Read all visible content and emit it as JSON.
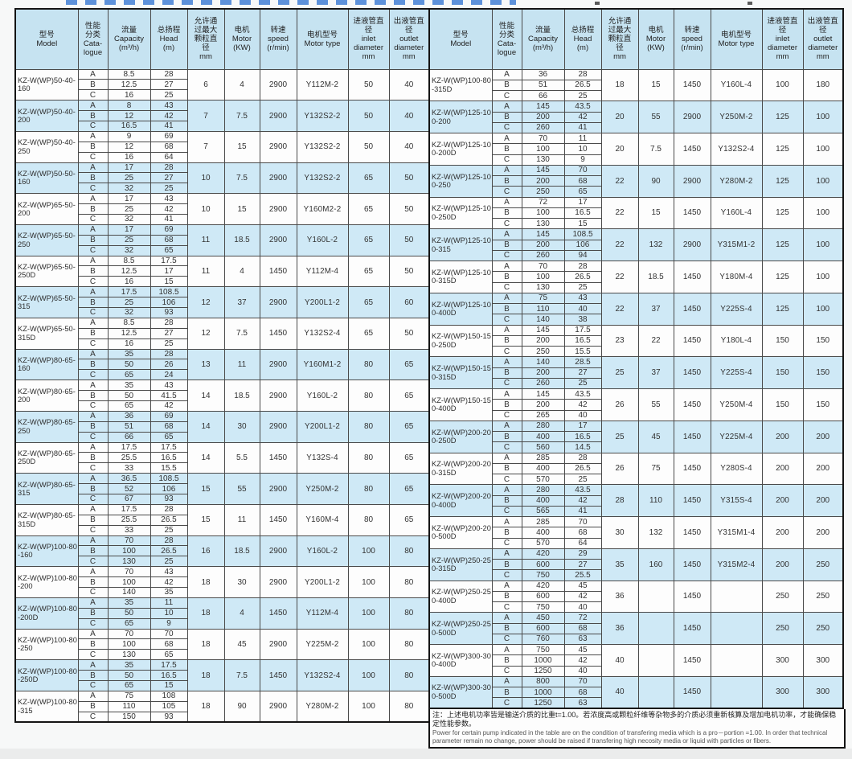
{
  "colors": {
    "header_bg": "#c6e3f1",
    "row_alt_bg": "#cfe9f6",
    "row_bg": "#fdfdfd",
    "border": "#141414",
    "accent_strip": "#2a6fd0"
  },
  "table_headers": [
    {
      "key": "model",
      "lines": [
        "型号",
        "Model"
      ]
    },
    {
      "key": "catalogue",
      "lines": [
        "性能",
        "分类",
        "Cata-",
        "logue"
      ]
    },
    {
      "key": "capacity",
      "lines": [
        "流量",
        "Capacity",
        "(m³/h)"
      ]
    },
    {
      "key": "head",
      "lines": [
        "总扬程",
        "Head",
        "(m)"
      ]
    },
    {
      "key": "particle",
      "lines": [
        "允许通",
        "过最大",
        "颗粒直",
        "径",
        "mm"
      ]
    },
    {
      "key": "motor",
      "lines": [
        "电机",
        "Motor",
        "(KW)"
      ]
    },
    {
      "key": "speed",
      "lines": [
        "转速",
        "speed",
        "(r/min)"
      ]
    },
    {
      "key": "motor_type",
      "lines": [
        "电机型号",
        "Motor type"
      ]
    },
    {
      "key": "inlet",
      "lines": [
        "进液管直",
        "径",
        "inlet",
        "diameter",
        "mm"
      ]
    },
    {
      "key": "outlet",
      "lines": [
        "出液管直",
        "径",
        "outlet",
        "diameter",
        "mm"
      ]
    }
  ],
  "left_groups": [
    {
      "model": "KZ-W(WP)50-40-160",
      "rows": [
        [
          "A",
          "8.5",
          "28"
        ],
        [
          "B",
          "12.5",
          "27"
        ],
        [
          "C",
          "16",
          "25"
        ]
      ],
      "particle": "6",
      "motor": "4",
      "speed": "2900",
      "motor_type": "Y112M-2",
      "inlet": "50",
      "outlet": "40"
    },
    {
      "model": "KZ-W(WP)50-40-200",
      "rows": [
        [
          "A",
          "8",
          "43"
        ],
        [
          "B",
          "12",
          "42"
        ],
        [
          "C",
          "16.5",
          "41"
        ]
      ],
      "particle": "7",
      "motor": "7.5",
      "speed": "2900",
      "motor_type": "Y132S2-2",
      "inlet": "50",
      "outlet": "40"
    },
    {
      "model": "KZ-W(WP)50-40-250",
      "rows": [
        [
          "A",
          "9",
          "69"
        ],
        [
          "B",
          "12",
          "68"
        ],
        [
          "C",
          "16",
          "64"
        ]
      ],
      "particle": "7",
      "motor": "15",
      "speed": "2900",
      "motor_type": "Y132S2-2",
      "inlet": "50",
      "outlet": "40"
    },
    {
      "model": "KZ-W(WP)50-50-160",
      "rows": [
        [
          "A",
          "17",
          "28"
        ],
        [
          "B",
          "25",
          "27"
        ],
        [
          "C",
          "32",
          "25"
        ]
      ],
      "particle": "10",
      "motor": "7.5",
      "speed": "2900",
      "motor_type": "Y132S2-2",
      "inlet": "65",
      "outlet": "50"
    },
    {
      "model": "KZ-W(WP)65-50-200",
      "rows": [
        [
          "A",
          "17",
          "43"
        ],
        [
          "B",
          "25",
          "42"
        ],
        [
          "C",
          "32",
          "41"
        ]
      ],
      "particle": "10",
      "motor": "15",
      "speed": "2900",
      "motor_type": "Y160M2-2",
      "inlet": "65",
      "outlet": "50"
    },
    {
      "model": "KZ-W(WP)65-50-250",
      "rows": [
        [
          "A",
          "17",
          "69"
        ],
        [
          "B",
          "25",
          "68"
        ],
        [
          "C",
          "32",
          "65"
        ]
      ],
      "particle": "11",
      "motor": "18.5",
      "speed": "2900",
      "motor_type": "Y160L-2",
      "inlet": "65",
      "outlet": "50"
    },
    {
      "model": "KZ-W(WP)65-50-250D",
      "rows": [
        [
          "A",
          "8.5",
          "17.5"
        ],
        [
          "B",
          "12.5",
          "17"
        ],
        [
          "C",
          "16",
          "15"
        ]
      ],
      "particle": "11",
      "motor": "4",
      "speed": "1450",
      "motor_type": "Y112M-4",
      "inlet": "65",
      "outlet": "50"
    },
    {
      "model": "KZ-W(WP)65-50-315",
      "rows": [
        [
          "A",
          "17.5",
          "108.5"
        ],
        [
          "B",
          "25",
          "106"
        ],
        [
          "C",
          "32",
          "93"
        ]
      ],
      "particle": "12",
      "motor": "37",
      "speed": "2900",
      "motor_type": "Y200L1-2",
      "inlet": "65",
      "outlet": "60"
    },
    {
      "model": "KZ-W(WP)65-50-315D",
      "rows": [
        [
          "A",
          "8.5",
          "28"
        ],
        [
          "B",
          "12.5",
          "27"
        ],
        [
          "C",
          "16",
          "25"
        ]
      ],
      "particle": "12",
      "motor": "7.5",
      "speed": "1450",
      "motor_type": "Y132S2-4",
      "inlet": "65",
      "outlet": "50"
    },
    {
      "model": "KZ-W(WP)80-65-160",
      "rows": [
        [
          "A",
          "35",
          "28"
        ],
        [
          "B",
          "50",
          "26"
        ],
        [
          "C",
          "65",
          "24"
        ]
      ],
      "particle": "13",
      "motor": "11",
      "speed": "2900",
      "motor_type": "Y160M1-2",
      "inlet": "80",
      "outlet": "65"
    },
    {
      "model": "KZ-W(WP)80-65-200",
      "rows": [
        [
          "A",
          "35",
          "43"
        ],
        [
          "B",
          "50",
          "41.5"
        ],
        [
          "C",
          "65",
          "42"
        ]
      ],
      "particle": "14",
      "motor": "18.5",
      "speed": "2900",
      "motor_type": "Y160L-2",
      "inlet": "80",
      "outlet": "65"
    },
    {
      "model": "KZ-W(WP)80-65-250",
      "rows": [
        [
          "A",
          "36",
          "69"
        ],
        [
          "B",
          "51",
          "68"
        ],
        [
          "C",
          "66",
          "65"
        ]
      ],
      "particle": "14",
      "motor": "30",
      "speed": "2900",
      "motor_type": "Y200L1-2",
      "inlet": "80",
      "outlet": "65"
    },
    {
      "model": "KZ-W(WP)80-65-250D",
      "rows": [
        [
          "A",
          "17.5",
          "17.5"
        ],
        [
          "B",
          "25.5",
          "16.5"
        ],
        [
          "C",
          "33",
          "15.5"
        ]
      ],
      "particle": "14",
      "motor": "5.5",
      "speed": "1450",
      "motor_type": "Y132S-4",
      "inlet": "80",
      "outlet": "65"
    },
    {
      "model": "KZ-W(WP)80-65-315",
      "rows": [
        [
          "A",
          "36.5",
          "108.5"
        ],
        [
          "B",
          "52",
          "106"
        ],
        [
          "C",
          "67",
          "93"
        ]
      ],
      "particle": "15",
      "motor": "55",
      "speed": "2900",
      "motor_type": "Y250M-2",
      "inlet": "80",
      "outlet": "65"
    },
    {
      "model": "KZ-W(WP)80-65-315D",
      "rows": [
        [
          "A",
          "17.5",
          "28"
        ],
        [
          "B",
          "25.5",
          "26.5"
        ],
        [
          "C",
          "33",
          "25"
        ]
      ],
      "particle": "15",
      "motor": "11",
      "speed": "1450",
      "motor_type": "Y160M-4",
      "inlet": "80",
      "outlet": "65"
    },
    {
      "model": "KZ-W(WP)100-80-160",
      "rows": [
        [
          "A",
          "70",
          "28"
        ],
        [
          "B",
          "100",
          "26.5"
        ],
        [
          "C",
          "130",
          "25"
        ]
      ],
      "particle": "16",
      "motor": "18.5",
      "speed": "2900",
      "motor_type": "Y160L-2",
      "inlet": "100",
      "outlet": "80"
    },
    {
      "model": "KZ-W(WP)100-80-200",
      "rows": [
        [
          "A",
          "70",
          "43"
        ],
        [
          "B",
          "100",
          "42"
        ],
        [
          "C",
          "140",
          "35"
        ]
      ],
      "particle": "18",
      "motor": "30",
      "speed": "2900",
      "motor_type": "Y200L1-2",
      "inlet": "100",
      "outlet": "80"
    },
    {
      "model": "KZ-W(WP)100-80-200D",
      "rows": [
        [
          "A",
          "35",
          "11"
        ],
        [
          "B",
          "50",
          "10"
        ],
        [
          "C",
          "65",
          "9"
        ]
      ],
      "particle": "18",
      "motor": "4",
      "speed": "1450",
      "motor_type": "Y112M-4",
      "inlet": "100",
      "outlet": "80"
    },
    {
      "model": "KZ-W(WP)100-80-250",
      "rows": [
        [
          "A",
          "70",
          "70"
        ],
        [
          "B",
          "100",
          "68"
        ],
        [
          "C",
          "130",
          "65"
        ]
      ],
      "particle": "18",
      "motor": "45",
      "speed": "2900",
      "motor_type": "Y225M-2",
      "inlet": "100",
      "outlet": "80"
    },
    {
      "model": "KZ-W(WP)100-80-250D",
      "rows": [
        [
          "A",
          "35",
          "17.5"
        ],
        [
          "B",
          "50",
          "16.5"
        ],
        [
          "C",
          "65",
          "15"
        ]
      ],
      "particle": "18",
      "motor": "7.5",
      "speed": "1450",
      "motor_type": "Y132S2-4",
      "inlet": "100",
      "outlet": "80"
    },
    {
      "model": "KZ-W(WP)100-80-315",
      "rows": [
        [
          "A",
          "75",
          "108"
        ],
        [
          "B",
          "110",
          "105"
        ],
        [
          "C",
          "150",
          "93"
        ]
      ],
      "particle": "18",
      "motor": "90",
      "speed": "2900",
      "motor_type": "Y280M-2",
      "inlet": "100",
      "outlet": "80"
    }
  ],
  "right_groups": [
    {
      "model": "KZ-W(WP)100-80-315D",
      "rows": [
        [
          "A",
          "36",
          "28"
        ],
        [
          "B",
          "51",
          "26.5"
        ],
        [
          "C",
          "66",
          "25"
        ]
      ],
      "particle": "18",
      "motor": "15",
      "speed": "1450",
      "motor_type": "Y160L-4",
      "inlet": "100",
      "outlet": "180"
    },
    {
      "model": "KZ-W(WP)125-100-200",
      "rows": [
        [
          "A",
          "145",
          "43.5"
        ],
        [
          "B",
          "200",
          "42"
        ],
        [
          "C",
          "260",
          "41"
        ]
      ],
      "particle": "20",
      "motor": "55",
      "speed": "2900",
      "motor_type": "Y250M-2",
      "inlet": "125",
      "outlet": "100"
    },
    {
      "model": "KZ-W(WP)125-100-200D",
      "rows": [
        [
          "A",
          "70",
          "11"
        ],
        [
          "B",
          "100",
          "10"
        ],
        [
          "C",
          "130",
          "9"
        ]
      ],
      "particle": "20",
      "motor": "7.5",
      "speed": "1450",
      "motor_type": "Y132S2-4",
      "inlet": "125",
      "outlet": "100"
    },
    {
      "model": "KZ-W(WP)125-100-250",
      "rows": [
        [
          "A",
          "145",
          "70"
        ],
        [
          "B",
          "200",
          "68"
        ],
        [
          "C",
          "250",
          "65"
        ]
      ],
      "particle": "22",
      "motor": "90",
      "speed": "2900",
      "motor_type": "Y280M-2",
      "inlet": "125",
      "outlet": "100"
    },
    {
      "model": "KZ-W(WP)125-100-250D",
      "rows": [
        [
          "A",
          "72",
          "17"
        ],
        [
          "B",
          "100",
          "16.5"
        ],
        [
          "C",
          "130",
          "15"
        ]
      ],
      "particle": "22",
      "motor": "15",
      "speed": "1450",
      "motor_type": "Y160L-4",
      "inlet": "125",
      "outlet": "100"
    },
    {
      "model": "KZ-W(WP)125-100-315",
      "rows": [
        [
          "A",
          "145",
          "108.5"
        ],
        [
          "B",
          "200",
          "106"
        ],
        [
          "C",
          "260",
          "94"
        ]
      ],
      "particle": "22",
      "motor": "132",
      "speed": "2900",
      "motor_type": "Y315M1-2",
      "inlet": "125",
      "outlet": "100"
    },
    {
      "model": "KZ-W(WP)125-100-315D",
      "rows": [
        [
          "A",
          "70",
          "28"
        ],
        [
          "B",
          "100",
          "26.5"
        ],
        [
          "C",
          "130",
          "25"
        ]
      ],
      "particle": "22",
      "motor": "18.5",
      "speed": "1450",
      "motor_type": "Y180M-4",
      "inlet": "125",
      "outlet": "100"
    },
    {
      "model": "KZ-W(WP)125-100-400D",
      "rows": [
        [
          "A",
          "75",
          "43"
        ],
        [
          "B",
          "110",
          "40"
        ],
        [
          "C",
          "140",
          "38"
        ]
      ],
      "particle": "22",
      "motor": "37",
      "speed": "1450",
      "motor_type": "Y225S-4",
      "inlet": "125",
      "outlet": "100"
    },
    {
      "model": "KZ-W(WP)150-150-250D",
      "rows": [
        [
          "A",
          "145",
          "17.5"
        ],
        [
          "B",
          "200",
          "16.5"
        ],
        [
          "C",
          "250",
          "15.5"
        ]
      ],
      "particle": "23",
      "motor": "22",
      "speed": "1450",
      "motor_type": "Y180L-4",
      "inlet": "150",
      "outlet": "150"
    },
    {
      "model": "KZ-W(WP)150-150-315D",
      "rows": [
        [
          "A",
          "140",
          "28.5"
        ],
        [
          "B",
          "200",
          "27"
        ],
        [
          "C",
          "260",
          "25"
        ]
      ],
      "particle": "25",
      "motor": "37",
      "speed": "1450",
      "motor_type": "Y225S-4",
      "inlet": "150",
      "outlet": "150"
    },
    {
      "model": "KZ-W(WP)150-150-400D",
      "rows": [
        [
          "A",
          "145",
          "43.5"
        ],
        [
          "B",
          "200",
          "42"
        ],
        [
          "C",
          "265",
          "40"
        ]
      ],
      "particle": "26",
      "motor": "55",
      "speed": "1450",
      "motor_type": "Y250M-4",
      "inlet": "150",
      "outlet": "150"
    },
    {
      "model": "KZ-W(WP)200-200-250D",
      "rows": [
        [
          "A",
          "280",
          "17"
        ],
        [
          "B",
          "400",
          "16.5"
        ],
        [
          "C",
          "560",
          "14.5"
        ]
      ],
      "particle": "25",
      "motor": "45",
      "speed": "1450",
      "motor_type": "Y225M-4",
      "inlet": "200",
      "outlet": "200"
    },
    {
      "model": "KZ-W(WP)200-200-315D",
      "rows": [
        [
          "A",
          "285",
          "28"
        ],
        [
          "B",
          "400",
          "26.5"
        ],
        [
          "C",
          "570",
          "25"
        ]
      ],
      "particle": "26",
      "motor": "75",
      "speed": "1450",
      "motor_type": "Y280S-4",
      "inlet": "200",
      "outlet": "200"
    },
    {
      "model": "KZ-W(WP)200-200-400D",
      "rows": [
        [
          "A",
          "280",
          "43.5"
        ],
        [
          "B",
          "400",
          "42"
        ],
        [
          "C",
          "565",
          "41"
        ]
      ],
      "particle": "28",
      "motor": "110",
      "speed": "1450",
      "motor_type": "Y315S-4",
      "inlet": "200",
      "outlet": "200"
    },
    {
      "model": "KZ-W(WP)200-200-500D",
      "rows": [
        [
          "A",
          "285",
          "70"
        ],
        [
          "B",
          "400",
          "68"
        ],
        [
          "C",
          "570",
          "64"
        ]
      ],
      "particle": "30",
      "motor": "132",
      "speed": "1450",
      "motor_type": "Y315M1-4",
      "inlet": "200",
      "outlet": "200"
    },
    {
      "model": "KZ-W(WP)250-250-315D",
      "rows": [
        [
          "A",
          "420",
          "29"
        ],
        [
          "B",
          "600",
          "27"
        ],
        [
          "C",
          "750",
          "25.5"
        ]
      ],
      "particle": "35",
      "motor": "160",
      "speed": "1450",
      "motor_type": "Y315M2-4",
      "inlet": "200",
      "outlet": "250"
    },
    {
      "model": "KZ-W(WP)250-250-400D",
      "rows": [
        [
          "A",
          "420",
          "45"
        ],
        [
          "B",
          "600",
          "42"
        ],
        [
          "C",
          "750",
          "40"
        ]
      ],
      "particle": "36",
      "motor": "",
      "speed": "1450",
      "motor_type": "",
      "inlet": "250",
      "outlet": "250"
    },
    {
      "model": "KZ-W(WP)250-250-500D",
      "rows": [
        [
          "A",
          "450",
          "72"
        ],
        [
          "B",
          "600",
          "68"
        ],
        [
          "C",
          "760",
          "63"
        ]
      ],
      "particle": "36",
      "motor": "",
      "speed": "1450",
      "motor_type": "",
      "inlet": "250",
      "outlet": "250"
    },
    {
      "model": "KZ-W(WP)300-300-400D",
      "rows": [
        [
          "A",
          "750",
          "45"
        ],
        [
          "B",
          "1000",
          "42"
        ],
        [
          "C",
          "1250",
          "40"
        ]
      ],
      "particle": "40",
      "motor": "",
      "speed": "1450",
      "motor_type": "",
      "inlet": "300",
      "outlet": "300"
    },
    {
      "model": "KZ-W(WP)300-300-500D",
      "rows": [
        [
          "A",
          "800",
          "70"
        ],
        [
          "B",
          "1000",
          "68"
        ],
        [
          "C",
          "1250",
          "63"
        ]
      ],
      "particle": "40",
      "motor": "",
      "speed": "1450",
      "motor_type": "",
      "inlet": "300",
      "outlet": "300"
    }
  ],
  "footnote": {
    "zh": "注：上述电机功率皆是输送介质的比重t=1.00。若浓度高或颗粒纤维等杂物多的介质必须重新核算及增加电机功率，才能确保稳定性能参数。",
    "en": "Power for certain pump indicated in the table are on the condition of transfering media which is a pro－portion =1.00. In order that technical parameter remain no change, power should be raised if transfering high necosity media or liquid with particles or fibers."
  }
}
